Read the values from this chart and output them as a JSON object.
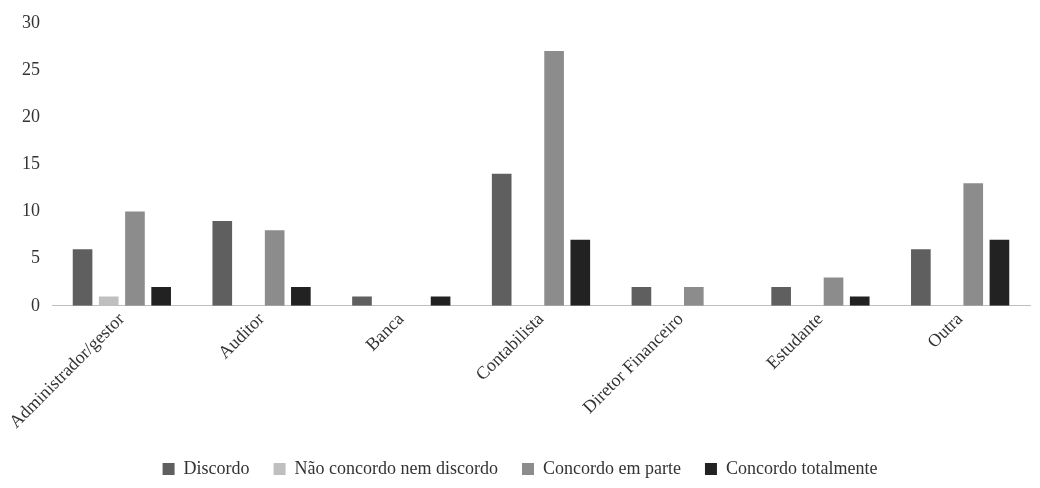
{
  "chart_data": {
    "type": "bar",
    "categories": [
      "Administrador/gestor",
      "Auditor",
      "Banca",
      "Contabilista",
      "Diretor Financeiro",
      "Estudante",
      "Outra"
    ],
    "series": [
      {
        "name": "Discordo",
        "color": "#5f5f5f",
        "values": [
          6,
          9,
          1,
          14,
          2,
          2,
          6
        ]
      },
      {
        "name": "Não concordo nem discordo",
        "color": "#bfbfbf",
        "values": [
          1,
          0,
          0,
          0,
          0,
          0,
          0
        ]
      },
      {
        "name": "Concordo em parte",
        "color": "#8c8c8c",
        "values": [
          10,
          8,
          0,
          27,
          2,
          3,
          13
        ]
      },
      {
        "name": "Concordo totalmente",
        "color": "#222222",
        "values": [
          2,
          2,
          1,
          7,
          0,
          1,
          7
        ]
      }
    ],
    "ylim": [
      0,
      30
    ],
    "yticks": [
      0,
      5,
      10,
      15,
      20,
      25,
      30
    ],
    "grid": false,
    "legend": "bottom"
  }
}
